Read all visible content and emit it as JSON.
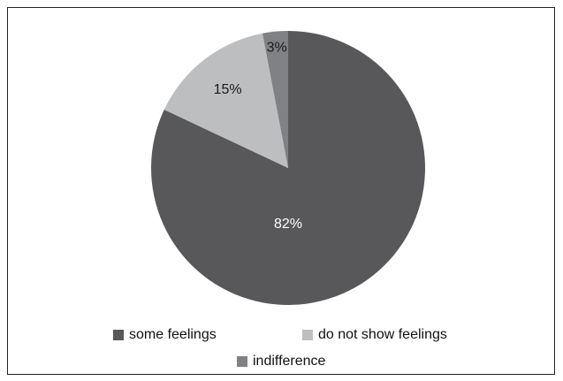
{
  "chart_data": {
    "type": "pie",
    "title": "",
    "categories": [
      "some feelings",
      "do not show feelings",
      "indifference"
    ],
    "values": [
      82,
      15,
      3
    ],
    "labels": [
      "82%",
      "15%",
      "3%"
    ],
    "colors": [
      "#58585a",
      "#bdbec0",
      "#808184"
    ],
    "label_colors": [
      "#ffffff",
      "#1a1a1a",
      "#1a1a1a"
    ],
    "start_angle_deg": 0,
    "direction": "clockwise",
    "legend_position": "bottom"
  }
}
